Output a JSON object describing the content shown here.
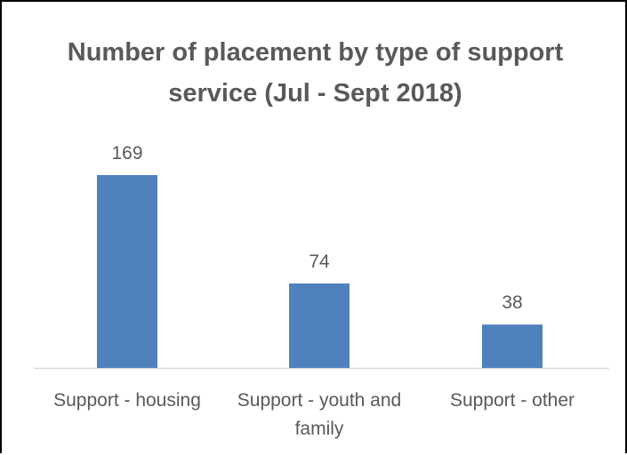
{
  "chart_data": {
    "type": "bar",
    "title": "Number of placement by type of support service (Jul - Sept 2018)",
    "categories": [
      "Support - housing",
      "Support - youth and family",
      "Support - other"
    ],
    "values": [
      169,
      74,
      38
    ],
    "data_labels": [
      "169",
      "74",
      "38"
    ],
    "xlabel": "",
    "ylabel": "",
    "ylim": [
      0,
      169
    ],
    "grid": false,
    "legend": "none",
    "bar_color": "#4f81bd",
    "axis_color": "#d9d9d9",
    "text_color": "#595959"
  }
}
